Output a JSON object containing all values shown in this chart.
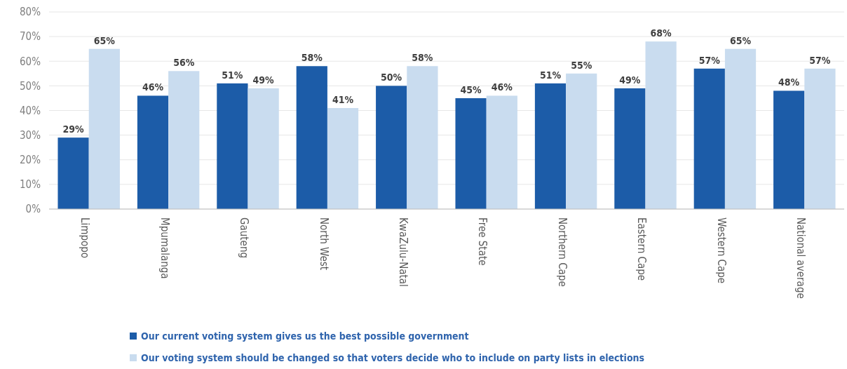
{
  "chart_data": {
    "type": "bar",
    "categories": [
      "Limpopo",
      "Mpumalanga",
      "Gauteng",
      "North West",
      "KwaZulu-Natal",
      "Free State",
      "Northern Cape",
      "Eastern Cape",
      "Western Cape",
      "National average"
    ],
    "series": [
      {
        "name": "Our current voting system gives us the best possible government",
        "color": "#1c5ca8",
        "values": [
          29,
          46,
          51,
          58,
          50,
          45,
          51,
          49,
          57,
          48
        ],
        "value_labels": [
          "29%",
          "46%",
          "51%",
          "58%",
          "50%",
          "45%",
          "51%",
          "49%",
          "57%",
          "48%"
        ]
      },
      {
        "name": "Our voting system should be changed so that voters decide who to include on party lists in elections",
        "color": "#c9dcef",
        "values": [
          65,
          56,
          49,
          41,
          58,
          46,
          55,
          68,
          65,
          57
        ],
        "value_labels": [
          "65%",
          "56%",
          "49%",
          "41%",
          "58%",
          "46%",
          "55%",
          "68%",
          "65%",
          "57%"
        ]
      }
    ],
    "ylim": [
      0,
      80
    ],
    "yticks": [
      {
        "value": 0,
        "label": "0%"
      },
      {
        "value": 10,
        "label": "10%"
      },
      {
        "value": 20,
        "label": "20%"
      },
      {
        "value": 30,
        "label": "30%"
      },
      {
        "value": 40,
        "label": "40%"
      },
      {
        "value": 50,
        "label": "50%"
      },
      {
        "value": 60,
        "label": "60%"
      },
      {
        "value": 70,
        "label": "70%"
      },
      {
        "value": 80,
        "label": "80%"
      }
    ],
    "grid": "y",
    "legend": "bottom"
  }
}
